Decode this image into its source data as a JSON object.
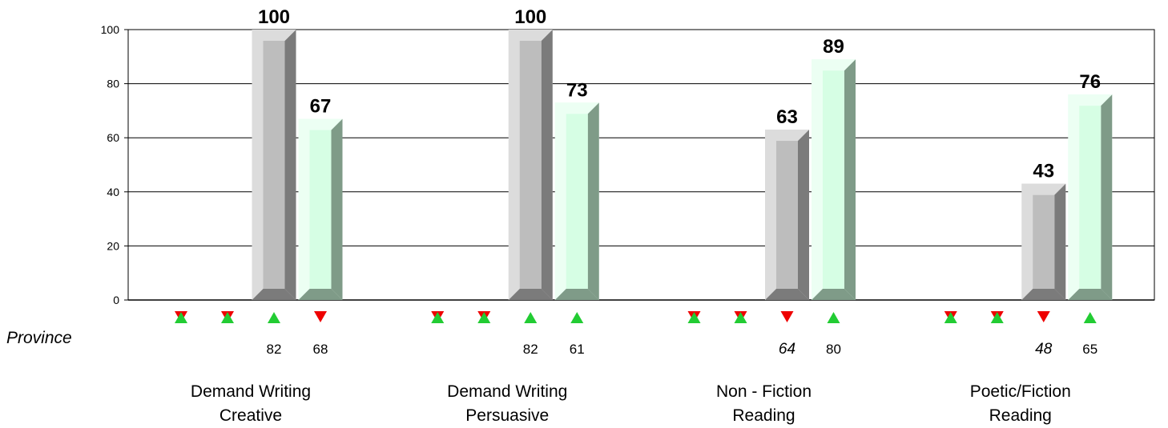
{
  "chart_data": {
    "type": "bar",
    "categories": [
      [
        "Demand Writing",
        "Creative"
      ],
      [
        "Demand Writing",
        "Persuasive"
      ],
      [
        "Non - Fiction",
        "Reading"
      ],
      [
        "Poetic/Fiction",
        "Reading"
      ]
    ],
    "series": [
      {
        "values": [
          0,
          0,
          0,
          0
        ]
      },
      {
        "values": [
          0,
          0,
          0,
          0
        ]
      },
      {
        "values": [
          100,
          100,
          63,
          43
        ]
      },
      {
        "values": [
          67,
          73,
          89,
          76
        ]
      }
    ],
    "value_labels": [
      [
        null,
        null,
        "100",
        "67"
      ],
      [
        null,
        null,
        "100",
        "73"
      ],
      [
        null,
        null,
        "63",
        "89"
      ],
      [
        null,
        null,
        "43",
        "76"
      ]
    ],
    "ylim": [
      0,
      100
    ],
    "yticks": [
      0,
      20,
      40,
      60,
      80,
      100
    ],
    "grid": true,
    "series_colors": {
      "gray": {
        "front": "#bdbdbd",
        "light": "#dcdcdc",
        "dark": "#7b7b7b"
      },
      "green": {
        "front": "#d6fee4",
        "light": "#ecfff3",
        "dark": "#7f9b88"
      }
    },
    "province_row": {
      "label": "Province",
      "markers": [
        [
          "both",
          "both",
          "up",
          "down"
        ],
        [
          "both",
          "both",
          "up",
          "up"
        ],
        [
          "both",
          "both",
          "down",
          "up"
        ],
        [
          "both",
          "both",
          "down",
          "up"
        ]
      ],
      "values": [
        [
          null,
          null,
          {
            "text": "82",
            "italic": false
          },
          {
            "text": "68",
            "italic": false
          }
        ],
        [
          null,
          null,
          {
            "text": "82",
            "italic": false
          },
          {
            "text": "61",
            "italic": false
          }
        ],
        [
          null,
          null,
          {
            "text": "64",
            "italic": true
          },
          {
            "text": "80",
            "italic": false
          }
        ],
        [
          null,
          null,
          {
            "text": "48",
            "italic": true
          },
          {
            "text": "65",
            "italic": false
          }
        ]
      ],
      "marker_colors": {
        "up": "#22cc33",
        "down": "#ee0000"
      }
    }
  }
}
